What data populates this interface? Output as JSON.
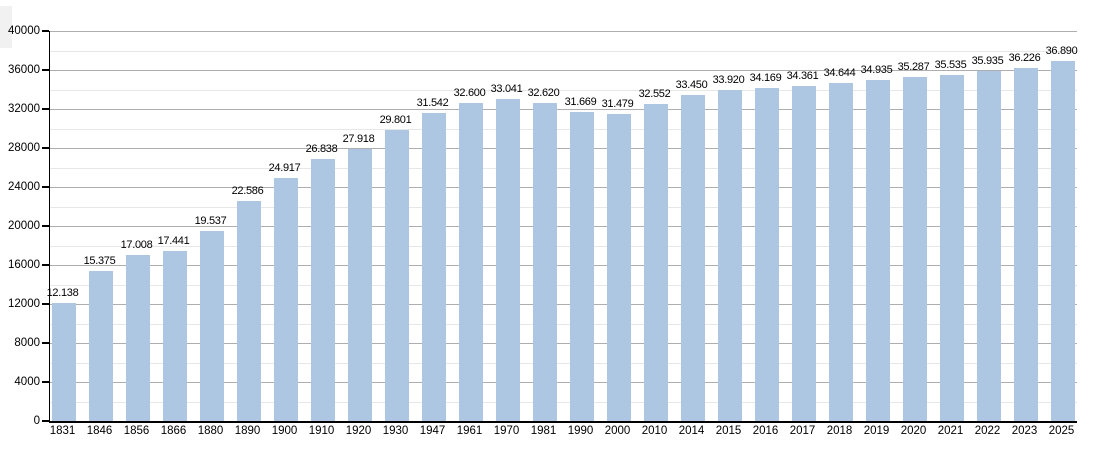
{
  "chart_data": {
    "type": "bar",
    "title": "",
    "xlabel": "",
    "ylabel": "",
    "categories": [
      "1831",
      "1846",
      "1856",
      "1866",
      "1880",
      "1890",
      "1900",
      "1910",
      "1920",
      "1930",
      "1947",
      "1961",
      "1970",
      "1981",
      "1990",
      "2000",
      "2010",
      "2014",
      "2015",
      "2016",
      "2017",
      "2018",
      "2019",
      "2020",
      "2021",
      "2022",
      "2023",
      "2025"
    ],
    "values": [
      12138,
      15375,
      17008,
      17441,
      19537,
      22586,
      24917,
      26838,
      27918,
      29801,
      31542,
      32600,
      33041,
      32620,
      31669,
      31479,
      32552,
      33450,
      33920,
      34169,
      34361,
      34644,
      34935,
      35287,
      35535,
      35935,
      36226,
      36890
    ],
    "value_labels": [
      "12.138",
      "15.375",
      "17.008",
      "17.441",
      "19.537",
      "22.586",
      "24.917",
      "26.838",
      "27.918",
      "29.801",
      "31.542",
      "32.600",
      "33.041",
      "32.620",
      "31.669",
      "31.479",
      "32.552",
      "33.450",
      "33.920",
      "34.169",
      "34.361",
      "34.644",
      "34.935",
      "35.287",
      "35.535",
      "35.935",
      "36.226",
      "36.890"
    ],
    "ylim": [
      0,
      40000
    ],
    "y_major_step": 4000,
    "y_minor_step": 2000,
    "y_tick_labels": [
      "0",
      "4000",
      "8000",
      "12000",
      "16000",
      "20000",
      "24000",
      "28000",
      "32000",
      "36000",
      "40000"
    ],
    "grid": true,
    "legend": "none",
    "colors": {
      "bar": "#adc7e2",
      "grid_major": "#aeaeae",
      "grid_minor": "#e7e7e7",
      "axis": "#000000",
      "text": "#000000",
      "background": "#ffffff"
    }
  }
}
